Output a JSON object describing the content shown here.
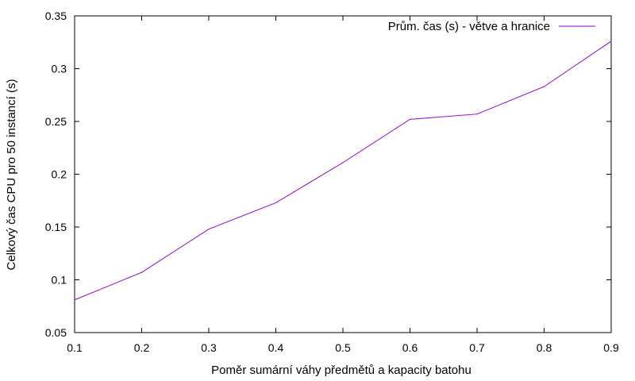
{
  "chart_data": {
    "type": "line",
    "xlabel": "Poměr sumární váhy předmětů a kapacity batohu",
    "ylabel": "Celkový čas CPU pro 50 instancí (s)",
    "xlim": [
      0.1,
      0.9
    ],
    "ylim": [
      0.05,
      0.35
    ],
    "x_ticks": [
      "0.1",
      "0.2",
      "0.3",
      "0.4",
      "0.5",
      "0.6",
      "0.7",
      "0.8",
      "0.9"
    ],
    "y_ticks": [
      "0.05",
      "0.1",
      "0.15",
      "0.2",
      "0.25",
      "0.3",
      "0.35"
    ],
    "grid": false,
    "legend_position": "top-right",
    "series": [
      {
        "name": "Prům. čas (s) - větve a hranice",
        "color": "#9400d3",
        "x": [
          0.1,
          0.2,
          0.3,
          0.4,
          0.5,
          0.6,
          0.7,
          0.8,
          0.9
        ],
        "y": [
          0.081,
          0.107,
          0.148,
          0.173,
          0.211,
          0.252,
          0.257,
          0.283,
          0.326
        ]
      }
    ]
  }
}
